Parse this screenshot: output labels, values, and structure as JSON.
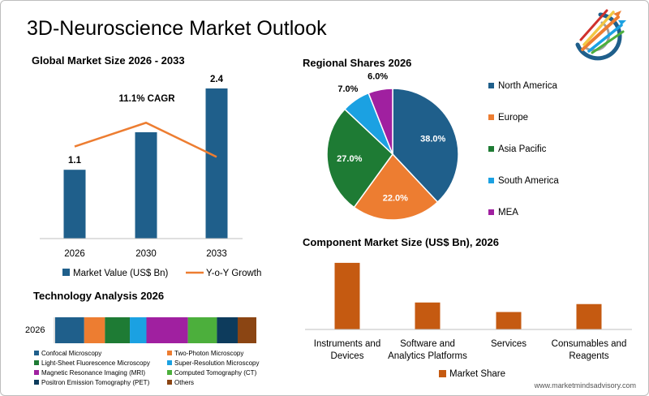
{
  "page_title": "3D-Neuroscience Market Outlook",
  "footer_url": "www.marketmindsadvisory.com",
  "logo": {
    "icon": "arrows-target-logo-icon"
  },
  "colors": {
    "navy": "#1f5f8b",
    "orange": "#ed7d31",
    "rust": "#c55a11",
    "green": "#1e7b34",
    "cyan": "#1ba1e2",
    "magenta": "#a020a0",
    "lime": "#4caf3c",
    "dark_navy": "#0d3b5c",
    "brown": "#8b4513",
    "axis": "#bfbfbf",
    "text": "#000000"
  },
  "chart_data": [
    {
      "id": "market-size",
      "type": "bar",
      "title": "Global Market Size 2026 - 2033",
      "categories": [
        "2026",
        "2030",
        "2033"
      ],
      "series": [
        {
          "name": "Market Value (US$ Bn)",
          "values": [
            1.1,
            1.7,
            2.4
          ],
          "data_labels": [
            "1.1",
            "",
            "2.4"
          ]
        }
      ],
      "overlay_line": {
        "name": "Y-o-Y Growth",
        "values": [
          0.62,
          0.78,
          0.55
        ]
      },
      "annotation": "11.1% CAGR",
      "ylim": [
        0,
        2.4
      ],
      "legend": [
        "Market Value (US$ Bn)",
        "Y-o-Y Growth"
      ],
      "legend_position": "bottom",
      "grid": false
    },
    {
      "id": "regional-shares",
      "type": "pie",
      "title": "Regional Shares 2026",
      "labels": [
        "North America",
        "Europe",
        "Asia Pacific",
        "South America",
        "MEA"
      ],
      "values": [
        38.0,
        22.0,
        27.0,
        7.0,
        6.0
      ],
      "data_labels": [
        "38.0%",
        "22.0%",
        "27.0%",
        "7.0%",
        "6.0%"
      ],
      "legend_position": "right"
    },
    {
      "id": "technology-analysis",
      "type": "bar",
      "orientation": "horizontal-stacked",
      "title": "Technology Analysis 2026",
      "categories": [
        "2026"
      ],
      "series": [
        {
          "name": "Confocal Microscopy",
          "values": [
            14
          ]
        },
        {
          "name": "Two-Photon Microscopy",
          "values": [
            10
          ]
        },
        {
          "name": "Light-Sheet Fluorescence Microscopy",
          "values": [
            12
          ]
        },
        {
          "name": "Super-Resolution Microscopy",
          "values": [
            8
          ]
        },
        {
          "name": "Magnetic Resonance Imaging (MRI)",
          "values": [
            20
          ]
        },
        {
          "name": "Computed Tomography (CT)",
          "values": [
            14
          ]
        },
        {
          "name": "Positron Emission Tomography (PET)",
          "values": [
            10
          ]
        },
        {
          "name": "Others",
          "values": [
            9
          ]
        }
      ],
      "legend_position": "bottom"
    },
    {
      "id": "component-market",
      "type": "bar",
      "title": "Component Market Size (US$ Bn), 2026",
      "categories": [
        "Instruments and Devices",
        "Software and Analytics Platforms",
        "Services",
        "Consumables and Reagents"
      ],
      "series": [
        {
          "name": "Market Share",
          "values": [
            0.42,
            0.17,
            0.11,
            0.16
          ]
        }
      ],
      "ylim": [
        0,
        0.44
      ],
      "legend_position": "bottom",
      "grid": false
    }
  ]
}
